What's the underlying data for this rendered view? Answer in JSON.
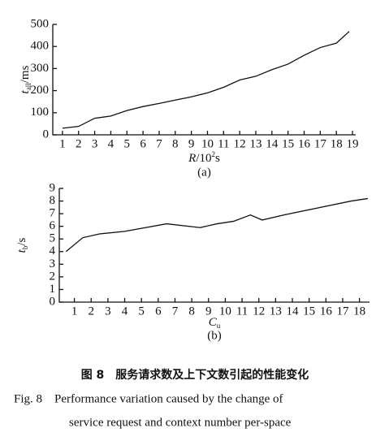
{
  "chart_data": [
    {
      "type": "line",
      "x_label": {
        "main": "R",
        "rest": "/10",
        "sup": "2",
        "unit": "s"
      },
      "y_label": {
        "main": "t",
        "sub": "all",
        "unit": "/ms"
      },
      "caption": "(a)",
      "xlim": [
        0.4,
        19.2
      ],
      "ylim": [
        0,
        500
      ],
      "xticks": [
        1,
        2,
        3,
        4,
        5,
        6,
        7,
        8,
        9,
        10,
        11,
        12,
        13,
        14,
        15,
        16,
        17,
        18,
        19
      ],
      "yticks": [
        0,
        100,
        200,
        300,
        400,
        500
      ],
      "x": [
        1,
        2,
        3,
        4,
        5,
        6,
        7,
        8,
        9,
        10,
        11,
        12,
        13,
        14,
        15,
        16,
        17,
        18,
        18.8
      ],
      "series": [
        {
          "color": "#111111",
          "values": [
            30,
            38,
            75,
            85,
            110,
            128,
            142,
            157,
            172,
            190,
            215,
            248,
            265,
            295,
            320,
            360,
            395,
            415,
            468
          ]
        }
      ]
    },
    {
      "type": "line",
      "x_label": {
        "main": "C",
        "sub": "u"
      },
      "y_label": {
        "main": "t",
        "sub": "b",
        "unit": "/s"
      },
      "caption": "(b)",
      "xlim": [
        0.1,
        18.6
      ],
      "ylim": [
        0,
        9
      ],
      "xticks": [
        1,
        2,
        3,
        4,
        5,
        6,
        7,
        8,
        9,
        10,
        11,
        12,
        13,
        14,
        15,
        16,
        17,
        18
      ],
      "yticks": [
        0,
        1,
        2,
        3,
        4,
        5,
        6,
        7,
        8,
        9
      ],
      "x": [
        0.5,
        1.5,
        2.5,
        4,
        6.5,
        8.5,
        9.5,
        10.5,
        11.5,
        12.2,
        13.5,
        17.5,
        18.5
      ],
      "series": [
        {
          "color": "#111111",
          "values": [
            4,
            5.1,
            5.4,
            5.6,
            6.2,
            5.9,
            6.2,
            6.4,
            6.9,
            6.5,
            6.9,
            8.0,
            8.2
          ]
        }
      ]
    }
  ],
  "caption_cn": "图 8　服务请求数及上下文数引起的性能变化",
  "caption_en_1": "Fig. 8　Performance variation caused by the change of",
  "caption_en_2": "service request and context number per-space"
}
